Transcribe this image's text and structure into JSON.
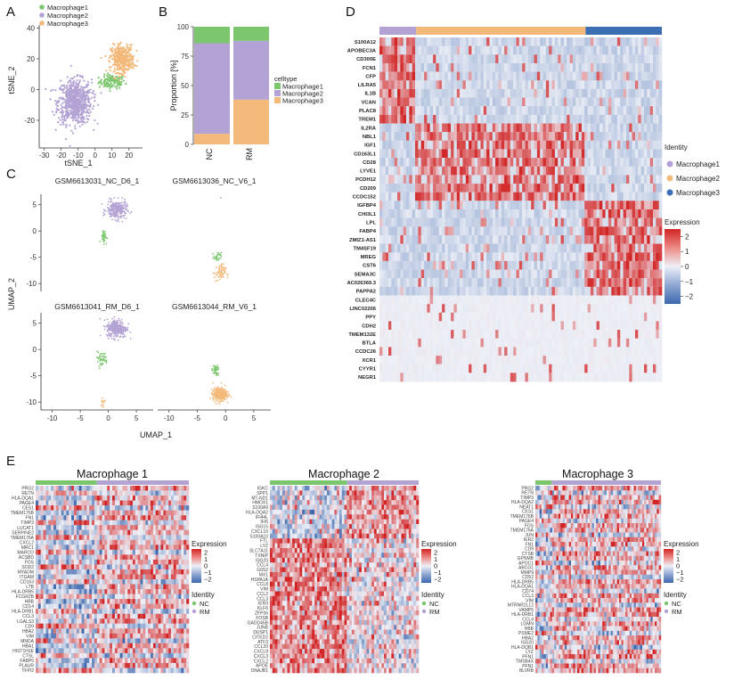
{
  "panel_labels": [
    "A",
    "B",
    "C",
    "D",
    "E"
  ],
  "colors": {
    "macrophage1": "#7cc66e",
    "macrophage2": "#b3a2d4",
    "macrophage3": "#f3b97a",
    "nc": "#7cc66e",
    "rm": "#b3a2d4",
    "id_m1": "#b3a2d4",
    "id_m2": "#f3b97a",
    "id_m3": "#3c6fb3",
    "heat_high": "#d22424",
    "heat_mid": "#eef0f7",
    "heat_low": "#3c67ad"
  },
  "chart_data": [
    {
      "id": "A",
      "type": "scatter",
      "xlabel": "tSNE_1",
      "ylabel": "tSNE_2",
      "xlim": [
        -33,
        28
      ],
      "ylim": [
        -38,
        42
      ],
      "xticks": [
        "-30",
        "-20",
        "-10",
        "0",
        "10",
        "20"
      ],
      "xtick_values": [
        -30,
        -20,
        -10,
        0,
        10,
        20
      ],
      "yticks": [
        "40",
        "20",
        "0",
        "-20"
      ],
      "ytick_values": [
        40,
        20,
        0,
        -20
      ],
      "legend": [
        "Macrophage1",
        "Macrophage2",
        "Macrophage3"
      ],
      "clusters": [
        {
          "name": "Macrophage1",
          "center": [
            10,
            5
          ],
          "spread": [
            7,
            4
          ],
          "n": 110
        },
        {
          "name": "Macrophage2",
          "center": [
            -12,
            -8
          ],
          "spread": [
            9,
            13
          ],
          "n": 700
        },
        {
          "name": "Macrophage3",
          "center": [
            16,
            20
          ],
          "spread": [
            6,
            8
          ],
          "n": 380
        }
      ]
    },
    {
      "id": "B",
      "type": "bar",
      "stacked": true,
      "categories": [
        "NC",
        "RM"
      ],
      "ylabel": "Proportion [%]",
      "ylim": [
        0,
        100
      ],
      "yticks": [
        "0",
        "25",
        "50",
        "75",
        "100"
      ],
      "ytick_values": [
        0,
        25,
        50,
        75,
        100
      ],
      "legend_title": "celltype",
      "series": [
        {
          "name": "Macrophage3",
          "values": [
            9,
            38
          ]
        },
        {
          "name": "Macrophage2",
          "values": [
            77,
            50
          ]
        },
        {
          "name": "Macrophage1",
          "values": [
            14,
            12
          ]
        }
      ]
    },
    {
      "id": "C",
      "type": "scatter",
      "xlabel": "UMAP_1",
      "ylabel": "UMAP_2",
      "xlim": [
        -12,
        8
      ],
      "ylim": [
        -11.5,
        8
      ],
      "xticks": [
        "-10",
        "-5",
        "0",
        "5"
      ],
      "xtick_values": [
        -10,
        -5,
        0,
        5
      ],
      "yticks": [
        "5",
        "0",
        "-5",
        "-10"
      ],
      "ytick_values": [
        5,
        0,
        -5,
        -10
      ],
      "facets": [
        {
          "title": "GSM6613031_NC_D6_1",
          "clusters": [
            {
              "name": "Macrophage2",
              "center": [
                1.5,
                4
              ],
              "spread": [
                1.6,
                1.6
              ],
              "n": 260
            },
            {
              "name": "Macrophage1",
              "center": [
                -0.8,
                -1
              ],
              "spread": [
                0.5,
                1.2
              ],
              "n": 40
            }
          ]
        },
        {
          "title": "GSM6613036_NC_V6_1",
          "clusters": [
            {
              "name": "Macrophage3",
              "center": [
                -1,
                -8
              ],
              "spread": [
                0.9,
                1.5
              ],
              "n": 60
            },
            {
              "name": "Macrophage1",
              "center": [
                -1.4,
                -5
              ],
              "spread": [
                0.6,
                0.8
              ],
              "n": 25
            },
            {
              "name": "Macrophage2",
              "center": [
                -1,
                6.5
              ],
              "spread": [
                0.5,
                0.3
              ],
              "n": 6
            }
          ]
        },
        {
          "title": "GSM6613041_RM_D6_1",
          "clusters": [
            {
              "name": "Macrophage2",
              "center": [
                1.5,
                4
              ],
              "spread": [
                1.6,
                1.6
              ],
              "n": 300
            },
            {
              "name": "Macrophage1",
              "center": [
                -1.2,
                -1.8
              ],
              "spread": [
                1,
                1.2
              ],
              "n": 45
            },
            {
              "name": "Macrophage3",
              "center": [
                -1,
                -10
              ],
              "spread": [
                0.6,
                1
              ],
              "n": 15
            }
          ]
        },
        {
          "title": "GSM6613044_RM_V6_1",
          "clusters": [
            {
              "name": "Macrophage3",
              "center": [
                -1,
                -8.5
              ],
              "spread": [
                1.1,
                1.1
              ],
              "n": 340
            },
            {
              "name": "Macrophage1",
              "center": [
                -1.8,
                -4
              ],
              "spread": [
                0.6,
                0.9
              ],
              "n": 40
            }
          ]
        }
      ]
    },
    {
      "id": "D",
      "type": "heatmap",
      "genes": [
        "S100A12",
        "APOBEC3A",
        "CD300E",
        "FCN1",
        "CFP",
        "LILRA5",
        "IL1B",
        "VCAN",
        "PLAC8",
        "TREM1",
        "IL2RA",
        "NBL1",
        "IGF1",
        "CD163L1",
        "CD28",
        "LYVE1",
        "PCDH12",
        "CD209",
        "CCDC152",
        "IGFBP4",
        "CHI3L1",
        "LPL",
        "FABP4",
        "ZMIZ1-AS1",
        "TM4SF19",
        "MREG",
        "CST6",
        "SEMA3C",
        "AC026369.3",
        "PAPPA2",
        "CLEC4C",
        "LINC02206",
        "PPY",
        "CDH2",
        "TMEM132E",
        "BTLA",
        "CCDC26",
        "XCR1",
        "CYYR1",
        "NEGR1"
      ],
      "groups": [
        {
          "name": "Macrophage1",
          "fraction": 0.13
        },
        {
          "name": "Macrophage2",
          "fraction": 0.6
        },
        {
          "name": "Macrophage3",
          "fraction": 0.27
        }
      ],
      "identity_title": "Identity",
      "identity_legend": [
        "Macrophage1",
        "Macrophage2",
        "Macrophage3"
      ],
      "expression_title": "Expression",
      "scale_ticks": [
        "2",
        "1",
        "0",
        "−1",
        "−2"
      ],
      "scale_values": [
        2,
        1,
        0,
        -1,
        -2
      ],
      "scale_range": [
        -2.5,
        2.5
      ]
    },
    {
      "id": "E",
      "type": "heatmap",
      "expression_title": "Expression",
      "scale_ticks": [
        "2",
        "1",
        "0",
        "−1",
        "−2"
      ],
      "scale_values": [
        2,
        1,
        0,
        -1,
        -2
      ],
      "identity_title": "Identity",
      "identity_legend": [
        "NC",
        "RM"
      ],
      "panels": [
        {
          "title": "Macrophage 1",
          "nc_fraction": 0.4,
          "genes": [
            "PRG2",
            "RETN",
            "HLA-DQA1",
            "PAGE4",
            "CES1",
            "TMEM176B",
            "FN1",
            "TIMP3",
            "LUCAT1",
            "SERPINE2",
            "TMEM176A",
            "CXCL2",
            "MRC1",
            "MARCO",
            "ACSBD",
            "FOS",
            "SOD2",
            "MYADM",
            "ITGAM",
            "CD163",
            "LTB",
            "HLA-DRB5",
            "FCGR2B",
            "HBB",
            "CD14",
            "HLA-DRB1",
            "CCL3",
            "LGALS3",
            "CD9",
            "HBA2",
            "VIM",
            "MNDA",
            "HBA1",
            "HIST1H1E",
            "CTSL",
            "FABP5",
            "PLAUR",
            "TFPI2"
          ]
        },
        {
          "title": "Macrophage 2",
          "nc_fraction": 0.52,
          "genes": [
            "IGKC",
            "SPP1",
            "MT-ND1",
            "HMOX1",
            "S100A9",
            "HLA-DQA2",
            "IFI44L",
            "IFI6",
            "ISG15",
            "CXCL10",
            "S100A10",
            "FTL",
            "LYZ",
            "SLC7A11",
            "TXNIP",
            "ISG20",
            "CCL4",
            "G0S2",
            "MX1",
            "HSPA1A",
            "CCL8",
            "VIM",
            "CCL2",
            "CCL3",
            "IER3",
            "KLF6",
            "ZFP36",
            "FOSB",
            "GADD45B",
            "JUNB",
            "DUSP1",
            "CITED2",
            "ATF3",
            "CCL20",
            "CXCL8",
            "CXCL3",
            "CXCL2",
            "APOE",
            "DNAJB1"
          ]
        },
        {
          "title": "Macrophage 3",
          "nc_fraction": 0.13,
          "genes": [
            "PRG2",
            "RETN",
            "TIMP3",
            "HLA-DQA2",
            "NEAT1",
            "CES1",
            "TMEM176B",
            "PAGE4",
            "FOS",
            "TMEM176A",
            "JUN",
            "IER2",
            "FN1",
            "CD9",
            "CTSB",
            "GPNMB",
            "APOC1",
            "ABCG1",
            "MMP9",
            "CD52",
            "HLA-DRB5",
            "HLA-DQA1",
            "CD74",
            "CCL3",
            "VIM",
            "MTRNR2L12",
            "VAMP5",
            "HLA-DRB1",
            "CCL4",
            "LGMN",
            "HBB",
            "PSME2",
            "HBA2",
            "ISG20",
            "HLA-DQB1",
            "LYZ",
            "PFN1",
            "TMSB4X",
            "PFN1",
            "BLVRB"
          ]
        }
      ]
    }
  ]
}
